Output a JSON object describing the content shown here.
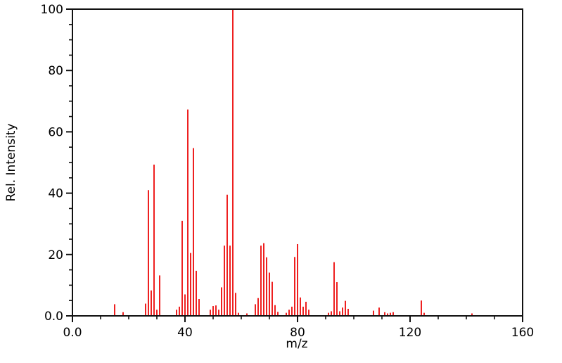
{
  "figure": {
    "background": "#ffffff"
  },
  "chart_data": {
    "type": "bar",
    "title": "",
    "xlabel": "m/z",
    "ylabel": "Rel. Intensity",
    "xlim": [
      0,
      160
    ],
    "ylim": [
      0,
      100
    ],
    "grid": "off",
    "legend": "none",
    "bar_color": "#ee2020",
    "axis_color": "#111111",
    "x_major_ticks": {
      "values": [
        0,
        40,
        80,
        120,
        160
      ],
      "labels": [
        "0.0",
        "40",
        "80",
        "120",
        "160"
      ]
    },
    "x_minor_step": 10,
    "y_major_ticks": {
      "values": [
        0,
        20,
        40,
        60,
        80,
        100
      ],
      "labels": [
        "0.0",
        "20",
        "40",
        "60",
        "80",
        "100"
      ]
    },
    "y_minor_step": 5,
    "peaks": [
      [
        15,
        3.8
      ],
      [
        18,
        1.2
      ],
      [
        26,
        4.0
      ],
      [
        27,
        41.0
      ],
      [
        28,
        8.3
      ],
      [
        29,
        49.3
      ],
      [
        30,
        2.0
      ],
      [
        31,
        13.2
      ],
      [
        37,
        2.0
      ],
      [
        38,
        3.0
      ],
      [
        39,
        31.0
      ],
      [
        40,
        7.0
      ],
      [
        41,
        67.3
      ],
      [
        42,
        20.5
      ],
      [
        43,
        54.7
      ],
      [
        44,
        14.7
      ],
      [
        45,
        5.5
      ],
      [
        49,
        2.0
      ],
      [
        50,
        3.2
      ],
      [
        51,
        3.4
      ],
      [
        52,
        2.0
      ],
      [
        53,
        9.3
      ],
      [
        54,
        22.9
      ],
      [
        55,
        39.5
      ],
      [
        56,
        22.9
      ],
      [
        57,
        100.0
      ],
      [
        58,
        7.5
      ],
      [
        59,
        1.0
      ],
      [
        62,
        0.8
      ],
      [
        65,
        3.8
      ],
      [
        66,
        5.8
      ],
      [
        67,
        22.9
      ],
      [
        68,
        23.7
      ],
      [
        69,
        19.1
      ],
      [
        70,
        14.1
      ],
      [
        71,
        11.1
      ],
      [
        72,
        3.5
      ],
      [
        73,
        1.3
      ],
      [
        76,
        1.0
      ],
      [
        77,
        2.0
      ],
      [
        78,
        3.0
      ],
      [
        79,
        19.2
      ],
      [
        80,
        23.4
      ],
      [
        81,
        6.0
      ],
      [
        82,
        3.0
      ],
      [
        83,
        4.6
      ],
      [
        84,
        2.0
      ],
      [
        91,
        1.0
      ],
      [
        92,
        1.5
      ],
      [
        93,
        17.5
      ],
      [
        94,
        11.0
      ],
      [
        95,
        1.5
      ],
      [
        96,
        2.7
      ],
      [
        97,
        4.9
      ],
      [
        98,
        2.3
      ],
      [
        107,
        1.7
      ],
      [
        109,
        2.7
      ],
      [
        111,
        1.2
      ],
      [
        112,
        0.8
      ],
      [
        113,
        1.0
      ],
      [
        114,
        1.2
      ],
      [
        124,
        5.0
      ],
      [
        125,
        1.0
      ],
      [
        142,
        0.8
      ]
    ]
  }
}
